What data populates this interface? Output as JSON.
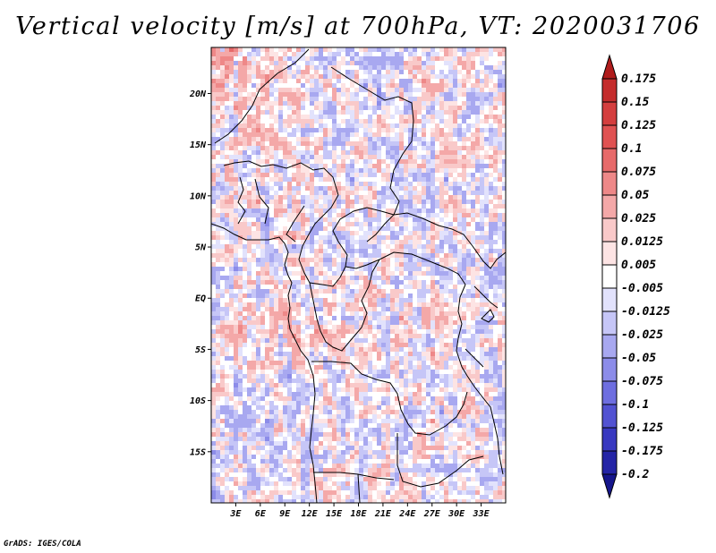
{
  "chart_data": {
    "type": "heatmap",
    "title": "Vertical velocity [m/s] at 700hPa, VT: 2020031706",
    "variable": "Vertical velocity",
    "units": "m/s",
    "level": "700hPa",
    "valid_time": "2020031706",
    "x_range": [
      0,
      36
    ],
    "y_range": [
      -20,
      24.5
    ],
    "x_ticks": [
      3,
      6,
      9,
      12,
      15,
      18,
      21,
      24,
      27,
      30,
      33
    ],
    "x_tick_labels": [
      "3E",
      "6E",
      "9E",
      "12E",
      "15E",
      "18E",
      "21E",
      "24E",
      "27E",
      "30E",
      "33E"
    ],
    "y_ticks": [
      20,
      15,
      10,
      5,
      0,
      -5,
      -10,
      -15
    ],
    "y_tick_labels": [
      "20N",
      "15N",
      "10N",
      "5N",
      "EQ",
      "5S",
      "10S",
      "15S"
    ],
    "colorbar": {
      "labels": [
        "0.175",
        "0.15",
        "0.125",
        "0.1",
        "0.075",
        "0.05",
        "0.025",
        "0.0125",
        "0.005",
        "-0.005",
        "-0.0125",
        "-0.025",
        "-0.05",
        "-0.075",
        "-0.1",
        "-0.125",
        "-0.175",
        "-0.2"
      ],
      "colors": [
        "#b01c1c",
        "#c42c2c",
        "#d43e3e",
        "#e05252",
        "#e76a6a",
        "#ee8888",
        "#f4a8a8",
        "#f9c9c9",
        "#fde4e4",
        "#ffffff",
        "#e2e2fc",
        "#c6c6f7",
        "#a8a8f0",
        "#8c8ce9",
        "#6e6ee0",
        "#5252d2",
        "#3838c0",
        "#2424a6",
        "#16168c"
      ],
      "top_arrow_color": "#b01c1c",
      "bottom_arrow_color": "#16168c"
    }
  },
  "footer_text": "GrADS: IGES/COLA"
}
